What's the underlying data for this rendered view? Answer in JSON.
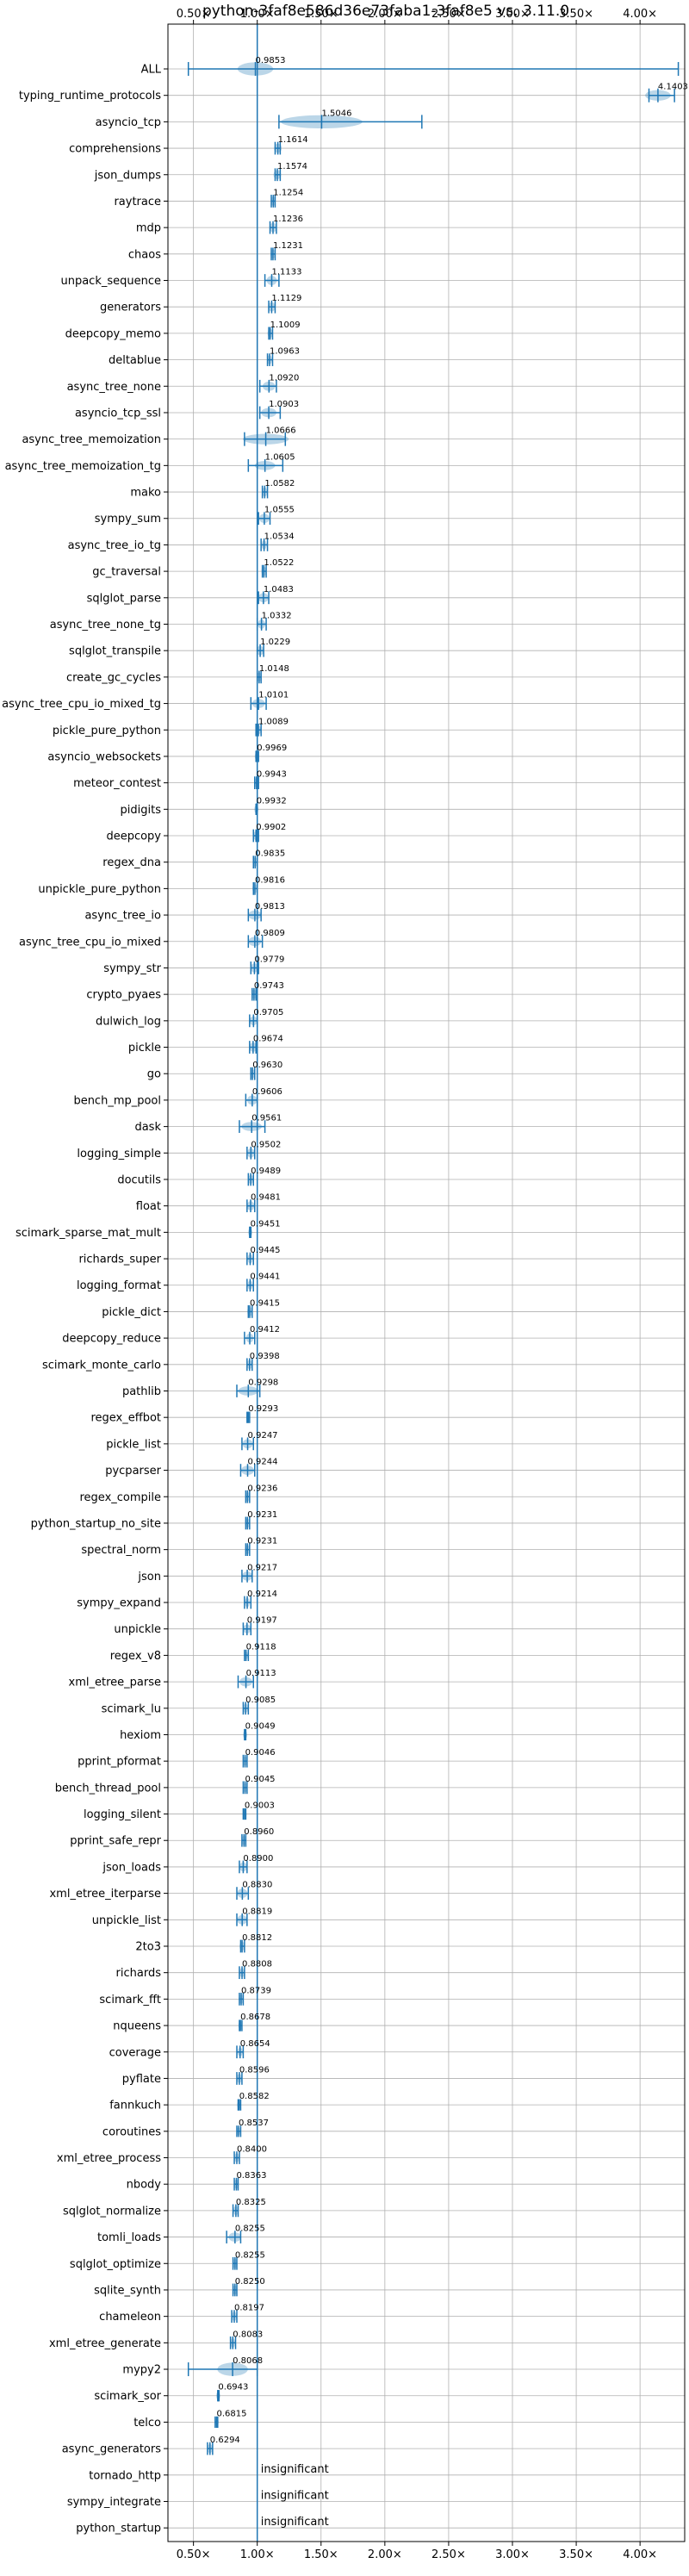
{
  "chart_data": {
    "type": "violin",
    "title": "python-3faf8e586d36e73faba1-3faf8e5 vs. 3.11.0",
    "xlabel": "",
    "ylabel": "",
    "xlim": [
      0.3,
      4.35
    ],
    "xticks": [
      0.5,
      1.0,
      1.5,
      2.0,
      2.5,
      3.0,
      3.5,
      4.0
    ],
    "xtick_labels": [
      "0.50×",
      "1.00×",
      "1.50×",
      "2.00×",
      "2.50×",
      "3.00×",
      "3.50×",
      "4.00×"
    ],
    "reference_line": 1.0,
    "grid": true,
    "colors": {
      "violin": "#1f77b4",
      "reference": "#1f77b4",
      "grid": "#b0b0b0"
    },
    "benchmarks": [
      {
        "name": "ALL",
        "value": 0.9853,
        "label": "0.9853",
        "min": 0.46,
        "max": 4.3,
        "spread": 0.14,
        "height": 0.5
      },
      {
        "name": "typing_runtime_protocols",
        "value": 4.1403,
        "label": "4.1403",
        "min": 4.07,
        "max": 4.27,
        "spread": 0.1,
        "height": 0.4
      },
      {
        "name": "asyncio_tcp",
        "value": 1.5046,
        "label": "1.5046",
        "min": 1.17,
        "max": 2.29,
        "spread": 0.32,
        "height": 0.5
      },
      {
        "name": "comprehensions",
        "value": 1.1614,
        "label": "1.1614",
        "min": 1.14,
        "max": 1.18,
        "spread": 0.03,
        "height": 0.35
      },
      {
        "name": "json_dumps",
        "value": 1.1574,
        "label": "1.1574",
        "min": 1.14,
        "max": 1.18,
        "spread": 0.03,
        "height": 0.35
      },
      {
        "name": "raytrace",
        "value": 1.1254,
        "label": "1.1254",
        "min": 1.11,
        "max": 1.14,
        "spread": 0.02,
        "height": 0.35
      },
      {
        "name": "mdp",
        "value": 1.1236,
        "label": "1.1236",
        "min": 1.1,
        "max": 1.15,
        "spread": 0.03,
        "height": 0.35
      },
      {
        "name": "chaos",
        "value": 1.1231,
        "label": "1.1231",
        "min": 1.11,
        "max": 1.14,
        "spread": 0.02,
        "height": 0.35
      },
      {
        "name": "unpack_sequence",
        "value": 1.1133,
        "label": "1.1133",
        "min": 1.06,
        "max": 1.17,
        "spread": 0.04,
        "height": 0.35
      },
      {
        "name": "generators",
        "value": 1.1129,
        "label": "1.1129",
        "min": 1.09,
        "max": 1.14,
        "spread": 0.03,
        "height": 0.35
      },
      {
        "name": "deepcopy_memo",
        "value": 1.1009,
        "label": "1.1009",
        "min": 1.09,
        "max": 1.12,
        "spread": 0.02,
        "height": 0.35
      },
      {
        "name": "deltablue",
        "value": 1.0963,
        "label": "1.0963",
        "min": 1.08,
        "max": 1.12,
        "spread": 0.02,
        "height": 0.35
      },
      {
        "name": "async_tree_none",
        "value": 1.092,
        "label": "1.0920",
        "min": 1.02,
        "max": 1.15,
        "spread": 0.05,
        "height": 0.35
      },
      {
        "name": "asyncio_tcp_ssl",
        "value": 1.0903,
        "label": "1.0903",
        "min": 1.02,
        "max": 1.18,
        "spread": 0.06,
        "height": 0.35
      },
      {
        "name": "async_tree_memoization",
        "value": 1.0666,
        "label": "1.0666",
        "min": 0.9,
        "max": 1.22,
        "spread": 0.18,
        "height": 0.4
      },
      {
        "name": "async_tree_memoization_tg",
        "value": 1.0605,
        "label": "1.0605",
        "min": 0.93,
        "max": 1.2,
        "spread": 0.08,
        "height": 0.35
      },
      {
        "name": "mako",
        "value": 1.0582,
        "label": "1.0582",
        "min": 1.04,
        "max": 1.08,
        "spread": 0.02,
        "height": 0.35
      },
      {
        "name": "sympy_sum",
        "value": 1.0555,
        "label": "1.0555",
        "min": 1.01,
        "max": 1.1,
        "spread": 0.04,
        "height": 0.35
      },
      {
        "name": "async_tree_io_tg",
        "value": 1.0534,
        "label": "1.0534",
        "min": 1.03,
        "max": 1.08,
        "spread": 0.02,
        "height": 0.35
      },
      {
        "name": "gc_traversal",
        "value": 1.0522,
        "label": "1.0522",
        "min": 1.04,
        "max": 1.07,
        "spread": 0.02,
        "height": 0.35
      },
      {
        "name": "sqlglot_parse",
        "value": 1.0483,
        "label": "1.0483",
        "min": 1.01,
        "max": 1.09,
        "spread": 0.04,
        "height": 0.35
      },
      {
        "name": "async_tree_none_tg",
        "value": 1.0332,
        "label": "1.0332",
        "min": 1.0,
        "max": 1.07,
        "spread": 0.03,
        "height": 0.35
      },
      {
        "name": "sqlglot_transpile",
        "value": 1.0229,
        "label": "1.0229",
        "min": 1.0,
        "max": 1.05,
        "spread": 0.03,
        "height": 0.35
      },
      {
        "name": "create_gc_cycles",
        "value": 1.0148,
        "label": "1.0148",
        "min": 1.0,
        "max": 1.03,
        "spread": 0.02,
        "height": 0.35
      },
      {
        "name": "async_tree_cpu_io_mixed_tg",
        "value": 1.0101,
        "label": "1.0101",
        "min": 0.95,
        "max": 1.07,
        "spread": 0.05,
        "height": 0.35
      },
      {
        "name": "pickle_pure_python",
        "value": 1.0089,
        "label": "1.0089",
        "min": 0.99,
        "max": 1.03,
        "spread": 0.02,
        "height": 0.35
      },
      {
        "name": "asyncio_websockets",
        "value": 0.9969,
        "label": "0.9969",
        "min": 0.99,
        "max": 1.01,
        "spread": 0.01,
        "height": 0.3
      },
      {
        "name": "meteor_contest",
        "value": 0.9943,
        "label": "0.9943",
        "min": 0.98,
        "max": 1.01,
        "spread": 0.02,
        "height": 0.35
      },
      {
        "name": "pidigits",
        "value": 0.9932,
        "label": "0.9932",
        "min": 0.99,
        "max": 1.0,
        "spread": 0.01,
        "height": 0.3
      },
      {
        "name": "deepcopy",
        "value": 0.9902,
        "label": "0.9902",
        "min": 0.97,
        "max": 1.01,
        "spread": 0.02,
        "height": 0.35
      },
      {
        "name": "regex_dna",
        "value": 0.9835,
        "label": "0.9835",
        "min": 0.97,
        "max": 1.0,
        "spread": 0.02,
        "height": 0.35
      },
      {
        "name": "unpickle_pure_python",
        "value": 0.9816,
        "label": "0.9816",
        "min": 0.97,
        "max": 1.0,
        "spread": 0.02,
        "height": 0.35
      },
      {
        "name": "async_tree_io",
        "value": 0.9813,
        "label": "0.9813",
        "min": 0.93,
        "max": 1.03,
        "spread": 0.05,
        "height": 0.35
      },
      {
        "name": "async_tree_cpu_io_mixed",
        "value": 0.9809,
        "label": "0.9809",
        "min": 0.93,
        "max": 1.04,
        "spread": 0.05,
        "height": 0.35
      },
      {
        "name": "sympy_str",
        "value": 0.9779,
        "label": "0.9779",
        "min": 0.95,
        "max": 1.01,
        "spread": 0.03,
        "height": 0.35
      },
      {
        "name": "crypto_pyaes",
        "value": 0.9743,
        "label": "0.9743",
        "min": 0.96,
        "max": 0.99,
        "spread": 0.02,
        "height": 0.35
      },
      {
        "name": "dulwich_log",
        "value": 0.9705,
        "label": "0.9705",
        "min": 0.94,
        "max": 1.0,
        "spread": 0.03,
        "height": 0.35
      },
      {
        "name": "pickle",
        "value": 0.9674,
        "label": "0.9674",
        "min": 0.94,
        "max": 0.99,
        "spread": 0.03,
        "height": 0.35
      },
      {
        "name": "go",
        "value": 0.963,
        "label": "0.9630",
        "min": 0.95,
        "max": 0.98,
        "spread": 0.02,
        "height": 0.35
      },
      {
        "name": "bench_mp_pool",
        "value": 0.9606,
        "label": "0.9606",
        "min": 0.91,
        "max": 1.0,
        "spread": 0.04,
        "height": 0.35
      },
      {
        "name": "dask",
        "value": 0.9561,
        "label": "0.9561",
        "min": 0.86,
        "max": 1.06,
        "spread": 0.08,
        "height": 0.35
      },
      {
        "name": "logging_simple",
        "value": 0.9502,
        "label": "0.9502",
        "min": 0.92,
        "max": 0.98,
        "spread": 0.03,
        "height": 0.35
      },
      {
        "name": "docutils",
        "value": 0.9489,
        "label": "0.9489",
        "min": 0.93,
        "max": 0.97,
        "spread": 0.02,
        "height": 0.35
      },
      {
        "name": "float",
        "value": 0.9481,
        "label": "0.9481",
        "min": 0.92,
        "max": 0.98,
        "spread": 0.03,
        "height": 0.35
      },
      {
        "name": "scimark_sparse_mat_mult",
        "value": 0.9451,
        "label": "0.9451",
        "min": 0.94,
        "max": 0.95,
        "spread": 0.01,
        "height": 0.3
      },
      {
        "name": "richards_super",
        "value": 0.9445,
        "label": "0.9445",
        "min": 0.92,
        "max": 0.97,
        "spread": 0.02,
        "height": 0.35
      },
      {
        "name": "logging_format",
        "value": 0.9441,
        "label": "0.9441",
        "min": 0.92,
        "max": 0.97,
        "spread": 0.02,
        "height": 0.35
      },
      {
        "name": "pickle_dict",
        "value": 0.9415,
        "label": "0.9415",
        "min": 0.93,
        "max": 0.96,
        "spread": 0.02,
        "height": 0.35
      },
      {
        "name": "deepcopy_reduce",
        "value": 0.9412,
        "label": "0.9412",
        "min": 0.9,
        "max": 0.98,
        "spread": 0.03,
        "height": 0.35
      },
      {
        "name": "scimark_monte_carlo",
        "value": 0.9398,
        "label": "0.9398",
        "min": 0.92,
        "max": 0.96,
        "spread": 0.02,
        "height": 0.35
      },
      {
        "name": "pathlib",
        "value": 0.9298,
        "label": "0.9298",
        "min": 0.84,
        "max": 1.02,
        "spread": 0.08,
        "height": 0.35
      },
      {
        "name": "regex_effbot",
        "value": 0.9293,
        "label": "0.9293",
        "min": 0.92,
        "max": 0.94,
        "spread": 0.01,
        "height": 0.3
      },
      {
        "name": "pickle_list",
        "value": 0.9247,
        "label": "0.9247",
        "min": 0.88,
        "max": 0.97,
        "spread": 0.04,
        "height": 0.35
      },
      {
        "name": "pycparser",
        "value": 0.9244,
        "label": "0.9244",
        "min": 0.87,
        "max": 0.98,
        "spread": 0.05,
        "height": 0.35
      },
      {
        "name": "regex_compile",
        "value": 0.9236,
        "label": "0.9236",
        "min": 0.91,
        "max": 0.94,
        "spread": 0.02,
        "height": 0.35
      },
      {
        "name": "python_startup_no_site",
        "value": 0.9231,
        "label": "0.9231",
        "min": 0.91,
        "max": 0.94,
        "spread": 0.02,
        "height": 0.35
      },
      {
        "name": "spectral_norm",
        "value": 0.9231,
        "label": "0.9231",
        "min": 0.91,
        "max": 0.94,
        "spread": 0.02,
        "height": 0.35
      },
      {
        "name": "json",
        "value": 0.9217,
        "label": "0.9217",
        "min": 0.88,
        "max": 0.96,
        "spread": 0.04,
        "height": 0.35
      },
      {
        "name": "sympy_expand",
        "value": 0.9214,
        "label": "0.9214",
        "min": 0.9,
        "max": 0.95,
        "spread": 0.02,
        "height": 0.35
      },
      {
        "name": "unpickle",
        "value": 0.9197,
        "label": "0.9197",
        "min": 0.89,
        "max": 0.95,
        "spread": 0.03,
        "height": 0.35
      },
      {
        "name": "regex_v8",
        "value": 0.9118,
        "label": "0.9118",
        "min": 0.9,
        "max": 0.93,
        "spread": 0.01,
        "height": 0.3
      },
      {
        "name": "xml_etree_parse",
        "value": 0.9113,
        "label": "0.9113",
        "min": 0.85,
        "max": 0.97,
        "spread": 0.05,
        "height": 0.35
      },
      {
        "name": "scimark_lu",
        "value": 0.9085,
        "label": "0.9085",
        "min": 0.89,
        "max": 0.93,
        "spread": 0.02,
        "height": 0.35
      },
      {
        "name": "hexiom",
        "value": 0.9049,
        "label": "0.9049",
        "min": 0.9,
        "max": 0.91,
        "spread": 0.01,
        "height": 0.3
      },
      {
        "name": "pprint_pformat",
        "value": 0.9046,
        "label": "0.9046",
        "min": 0.89,
        "max": 0.92,
        "spread": 0.02,
        "height": 0.35
      },
      {
        "name": "bench_thread_pool",
        "value": 0.9045,
        "label": "0.9045",
        "min": 0.89,
        "max": 0.92,
        "spread": 0.02,
        "height": 0.35
      },
      {
        "name": "logging_silent",
        "value": 0.9003,
        "label": "0.9003",
        "min": 0.89,
        "max": 0.91,
        "spread": 0.01,
        "height": 0.3
      },
      {
        "name": "pprint_safe_repr",
        "value": 0.896,
        "label": "0.8960",
        "min": 0.88,
        "max": 0.91,
        "spread": 0.02,
        "height": 0.35
      },
      {
        "name": "json_loads",
        "value": 0.89,
        "label": "0.8900",
        "min": 0.86,
        "max": 0.92,
        "spread": 0.03,
        "height": 0.35
      },
      {
        "name": "xml_etree_iterparse",
        "value": 0.883,
        "label": "0.8830",
        "min": 0.84,
        "max": 0.93,
        "spread": 0.04,
        "height": 0.35
      },
      {
        "name": "unpickle_list",
        "value": 0.8819,
        "label": "0.8819",
        "min": 0.84,
        "max": 0.92,
        "spread": 0.04,
        "height": 0.35
      },
      {
        "name": "2to3",
        "value": 0.8812,
        "label": "0.8812",
        "min": 0.87,
        "max": 0.9,
        "spread": 0.02,
        "height": 0.35
      },
      {
        "name": "richards",
        "value": 0.8808,
        "label": "0.8808",
        "min": 0.86,
        "max": 0.9,
        "spread": 0.02,
        "height": 0.35
      },
      {
        "name": "scimark_fft",
        "value": 0.8739,
        "label": "0.8739",
        "min": 0.86,
        "max": 0.89,
        "spread": 0.02,
        "height": 0.35
      },
      {
        "name": "nqueens",
        "value": 0.8678,
        "label": "0.8678",
        "min": 0.86,
        "max": 0.88,
        "spread": 0.01,
        "height": 0.3
      },
      {
        "name": "coverage",
        "value": 0.8654,
        "label": "0.8654",
        "min": 0.84,
        "max": 0.89,
        "spread": 0.02,
        "height": 0.35
      },
      {
        "name": "pyflate",
        "value": 0.8596,
        "label": "0.8596",
        "min": 0.84,
        "max": 0.88,
        "spread": 0.02,
        "height": 0.35
      },
      {
        "name": "fannkuch",
        "value": 0.8582,
        "label": "0.8582",
        "min": 0.85,
        "max": 0.87,
        "spread": 0.01,
        "height": 0.3
      },
      {
        "name": "coroutines",
        "value": 0.8537,
        "label": "0.8537",
        "min": 0.84,
        "max": 0.87,
        "spread": 0.01,
        "height": 0.3
      },
      {
        "name": "xml_etree_process",
        "value": 0.84,
        "label": "0.8400",
        "min": 0.82,
        "max": 0.86,
        "spread": 0.02,
        "height": 0.35
      },
      {
        "name": "nbody",
        "value": 0.8363,
        "label": "0.8363",
        "min": 0.82,
        "max": 0.85,
        "spread": 0.02,
        "height": 0.35
      },
      {
        "name": "sqlglot_normalize",
        "value": 0.8325,
        "label": "0.8325",
        "min": 0.81,
        "max": 0.85,
        "spread": 0.02,
        "height": 0.35
      },
      {
        "name": "tomli_loads",
        "value": 0.8255,
        "label": "0.8255",
        "min": 0.76,
        "max": 0.87,
        "spread": 0.05,
        "height": 0.35
      },
      {
        "name": "sqlglot_optimize",
        "value": 0.8255,
        "label": "0.8255",
        "min": 0.81,
        "max": 0.84,
        "spread": 0.02,
        "height": 0.35
      },
      {
        "name": "sqlite_synth",
        "value": 0.825,
        "label": "0.8250",
        "min": 0.81,
        "max": 0.84,
        "spread": 0.02,
        "height": 0.35
      },
      {
        "name": "chameleon",
        "value": 0.8197,
        "label": "0.8197",
        "min": 0.8,
        "max": 0.84,
        "spread": 0.02,
        "height": 0.35
      },
      {
        "name": "xml_etree_generate",
        "value": 0.8083,
        "label": "0.8083",
        "min": 0.79,
        "max": 0.83,
        "spread": 0.02,
        "height": 0.35
      },
      {
        "name": "mypy2",
        "value": 0.8068,
        "label": "0.8068",
        "min": 0.46,
        "max": 1.0,
        "spread": 0.12,
        "height": 0.5
      },
      {
        "name": "scimark_sor",
        "value": 0.6943,
        "label": "0.6943",
        "min": 0.69,
        "max": 0.7,
        "spread": 0.01,
        "height": 0.3
      },
      {
        "name": "telco",
        "value": 0.6815,
        "label": "0.6815",
        "min": 0.67,
        "max": 0.69,
        "spread": 0.01,
        "height": 0.3
      },
      {
        "name": "async_generators",
        "value": 0.6294,
        "label": "0.6294",
        "min": 0.61,
        "max": 0.65,
        "spread": 0.02,
        "height": 0.35
      },
      {
        "name": "tornado_http",
        "value": null,
        "label": "insignificant"
      },
      {
        "name": "sympy_integrate",
        "value": null,
        "label": "insignificant"
      },
      {
        "name": "python_startup",
        "value": null,
        "label": "insignificant"
      }
    ]
  }
}
